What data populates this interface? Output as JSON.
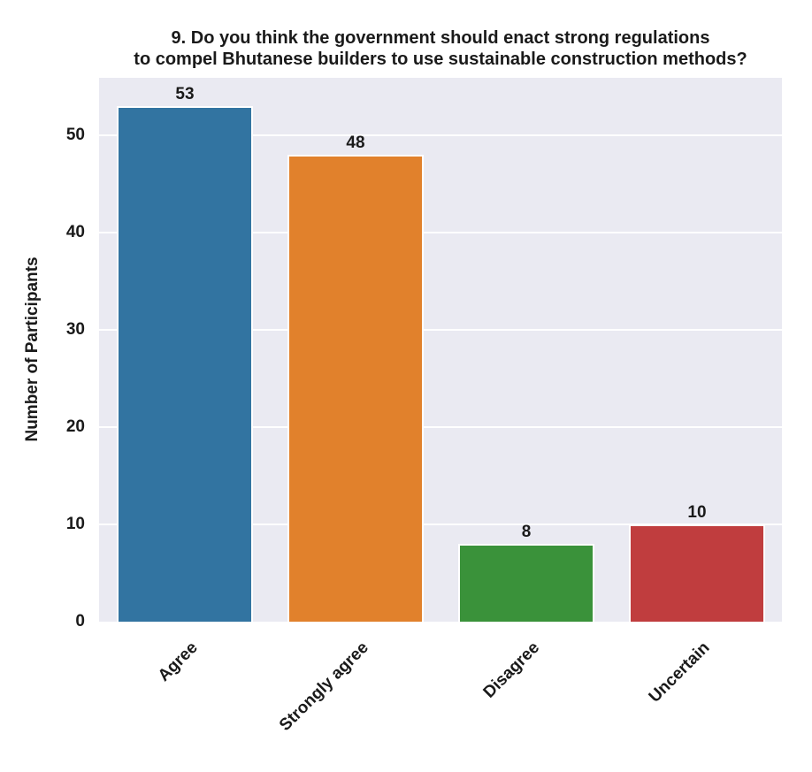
{
  "chart_data": {
    "type": "bar",
    "title": "9. Do you think the government should enact strong regulations to compel Bhutanese builders to use sustainable construction methods?",
    "title_lines": [
      "9. Do you think the government should enact strong regulations",
      "to compel Bhutanese builders to use sustainable construction methods?"
    ],
    "categories": [
      "Agree",
      "Strongly agree",
      "Disagree",
      "Uncertain"
    ],
    "values": [
      53,
      48,
      8,
      10
    ],
    "bar_labels": [
      "53",
      "48",
      "8",
      "10"
    ],
    "bar_colors": [
      "#3274a1",
      "#e1812c",
      "#3a923a",
      "#c03d3e"
    ],
    "xlabel": "",
    "ylabel": "Number of Participants",
    "yticks": [
      0,
      10,
      20,
      30,
      40,
      50
    ],
    "ylim": [
      0,
      55.9
    ],
    "grid": "horizontal",
    "grid_color": "#ffffff",
    "plot_background": "#eaeaf2",
    "legend": "none",
    "x_tick_rotation_deg": 45
  }
}
